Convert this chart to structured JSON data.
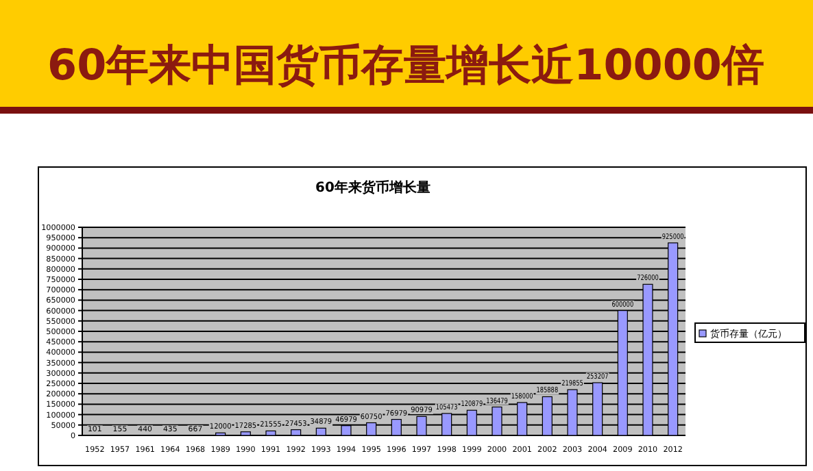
{
  "chart_data": {
    "type": "bar",
    "title": "60年来中国货币存量增长近10000倍",
    "subtitle": "60年来货币增长量",
    "categories": [
      "1952",
      "1957",
      "1961",
      "1964",
      "1968",
      "1989",
      "1990",
      "1991",
      "1992",
      "1993",
      "1994",
      "1995",
      "1996",
      "1997",
      "1998",
      "1999",
      "2000",
      "2001",
      "2002",
      "2003",
      "2004",
      "2009",
      "2010",
      "2012"
    ],
    "series": [
      {
        "name": "货币存量（亿元）",
        "color": "#9999ff",
        "values": [
          101,
          155,
          440,
          435,
          667,
          12000,
          17285,
          21555,
          27453,
          34879,
          46979,
          60750,
          76979,
          90979,
          105473,
          120879,
          136479,
          158000,
          185888,
          219855,
          253207,
          600000,
          726000,
          925000
        ]
      }
    ],
    "ylim": [
      0,
      1000000
    ],
    "yticks": [
      0,
      50000,
      100000,
      150000,
      200000,
      250000,
      300000,
      350000,
      400000,
      450000,
      500000,
      550000,
      600000,
      650000,
      700000,
      750000,
      800000,
      850000,
      900000,
      950000,
      1000000
    ],
    "grid": "y",
    "legend": "right",
    "data_labels": true
  }
}
